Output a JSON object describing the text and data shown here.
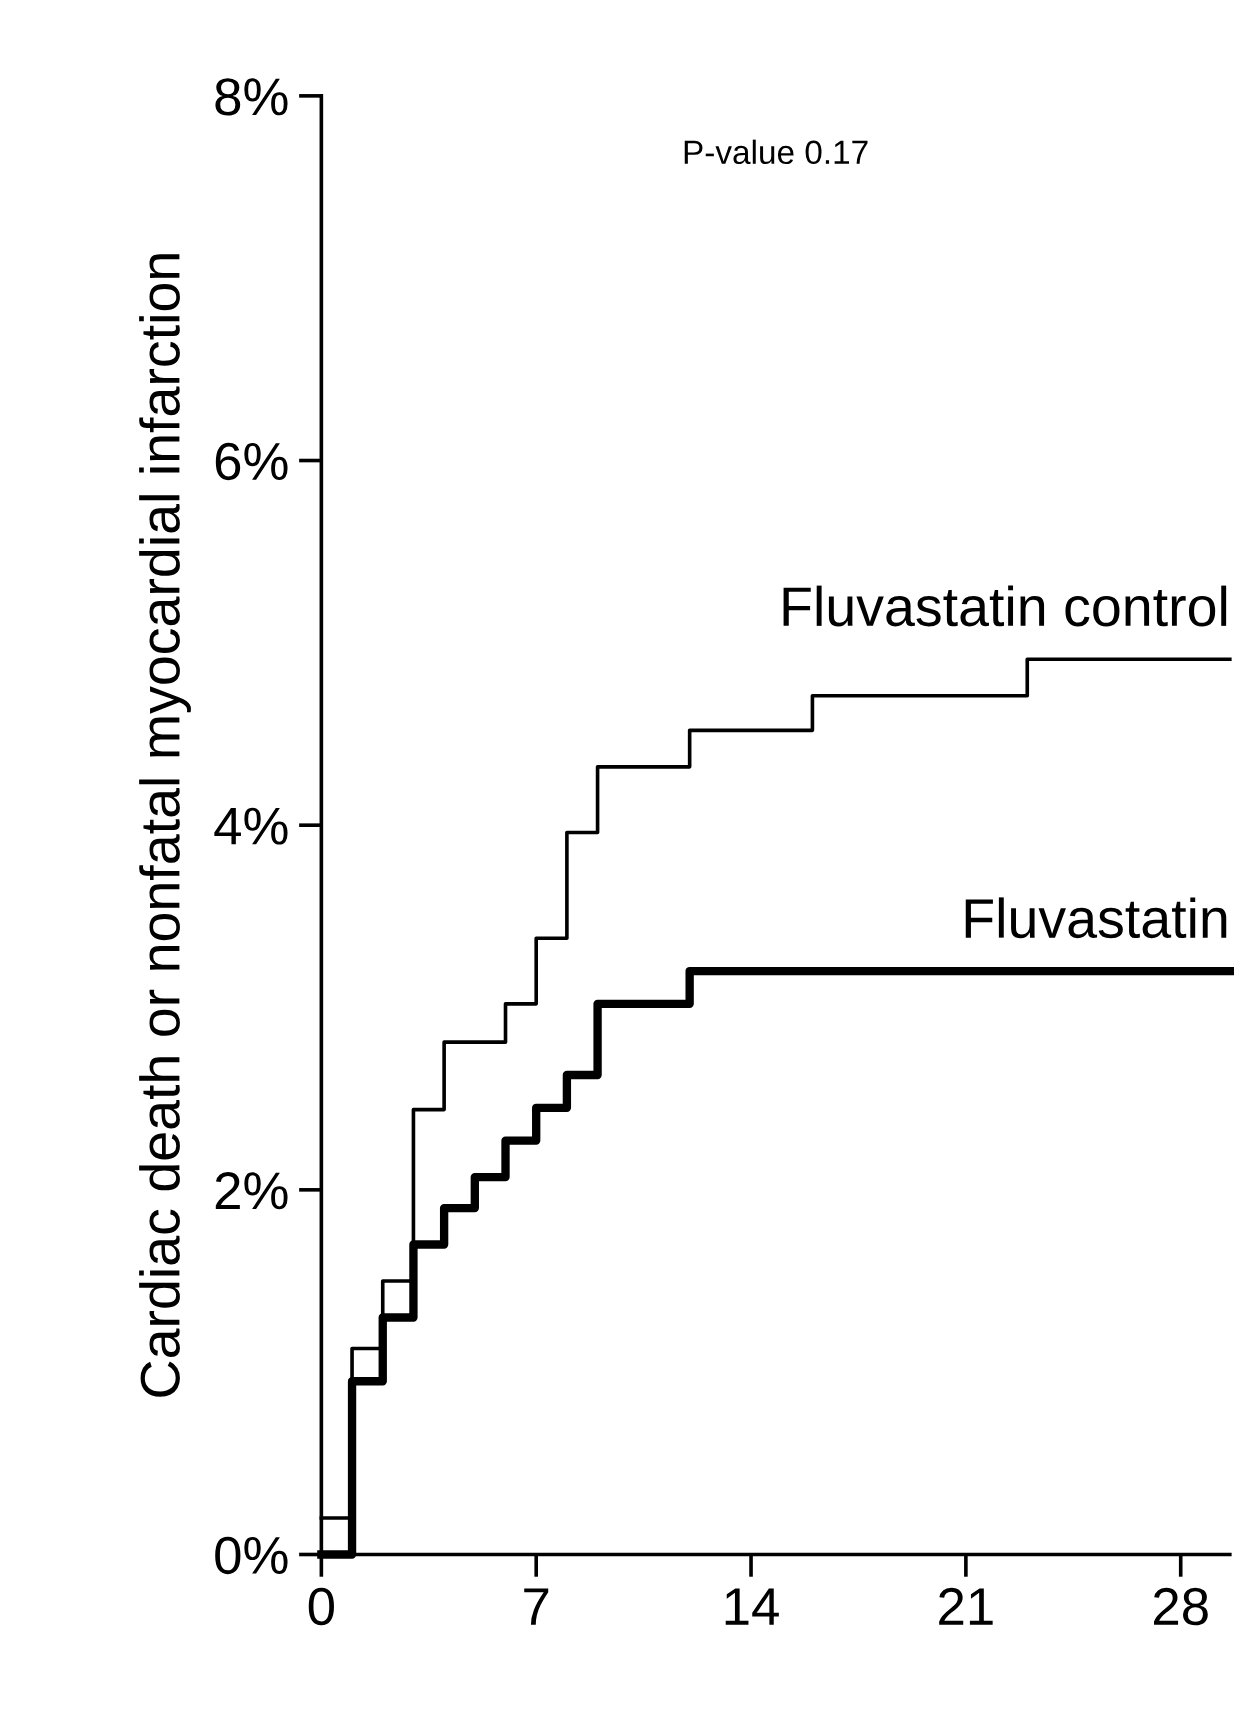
{
  "chart_data": {
    "type": "step",
    "ylabel": "Cardiac death or nonfatal myocardial infarction",
    "annotations": [
      "P-value 0.17"
    ],
    "xlim": [
      0,
      29.6
    ],
    "xticks": [
      0,
      7,
      14,
      21,
      28
    ],
    "ylim": [
      0,
      8
    ],
    "yticks": [
      {
        "value": 0,
        "label": "0%"
      },
      {
        "value": 2,
        "label": "2%"
      },
      {
        "value": 4,
        "label": "4%"
      },
      {
        "value": 6,
        "label": "6%"
      },
      {
        "value": 8,
        "label": "8%"
      }
    ],
    "grid": false,
    "legend": false,
    "line_style": "solid",
    "marker": "none",
    "series": [
      {
        "name": "Fluvastatin control",
        "color": "#000000",
        "x": [
          0,
          1,
          2,
          3,
          4,
          6,
          7,
          8,
          9,
          12,
          16,
          23,
          29.6
        ],
        "values": [
          0.2,
          1.13,
          1.5,
          2.44,
          2.81,
          3.02,
          3.38,
          3.96,
          4.32,
          4.52,
          4.71,
          4.91,
          4.91
        ]
      },
      {
        "name": "Fluvastatin",
        "color": "#000000",
        "x": [
          0,
          1,
          2,
          3,
          4,
          5,
          6,
          7,
          8,
          9,
          12,
          29.6
        ],
        "values": [
          0,
          0.95,
          1.3,
          1.7,
          1.9,
          2.07,
          2.27,
          2.45,
          2.63,
          3.02,
          3.2,
          3.2
        ]
      }
    ]
  }
}
